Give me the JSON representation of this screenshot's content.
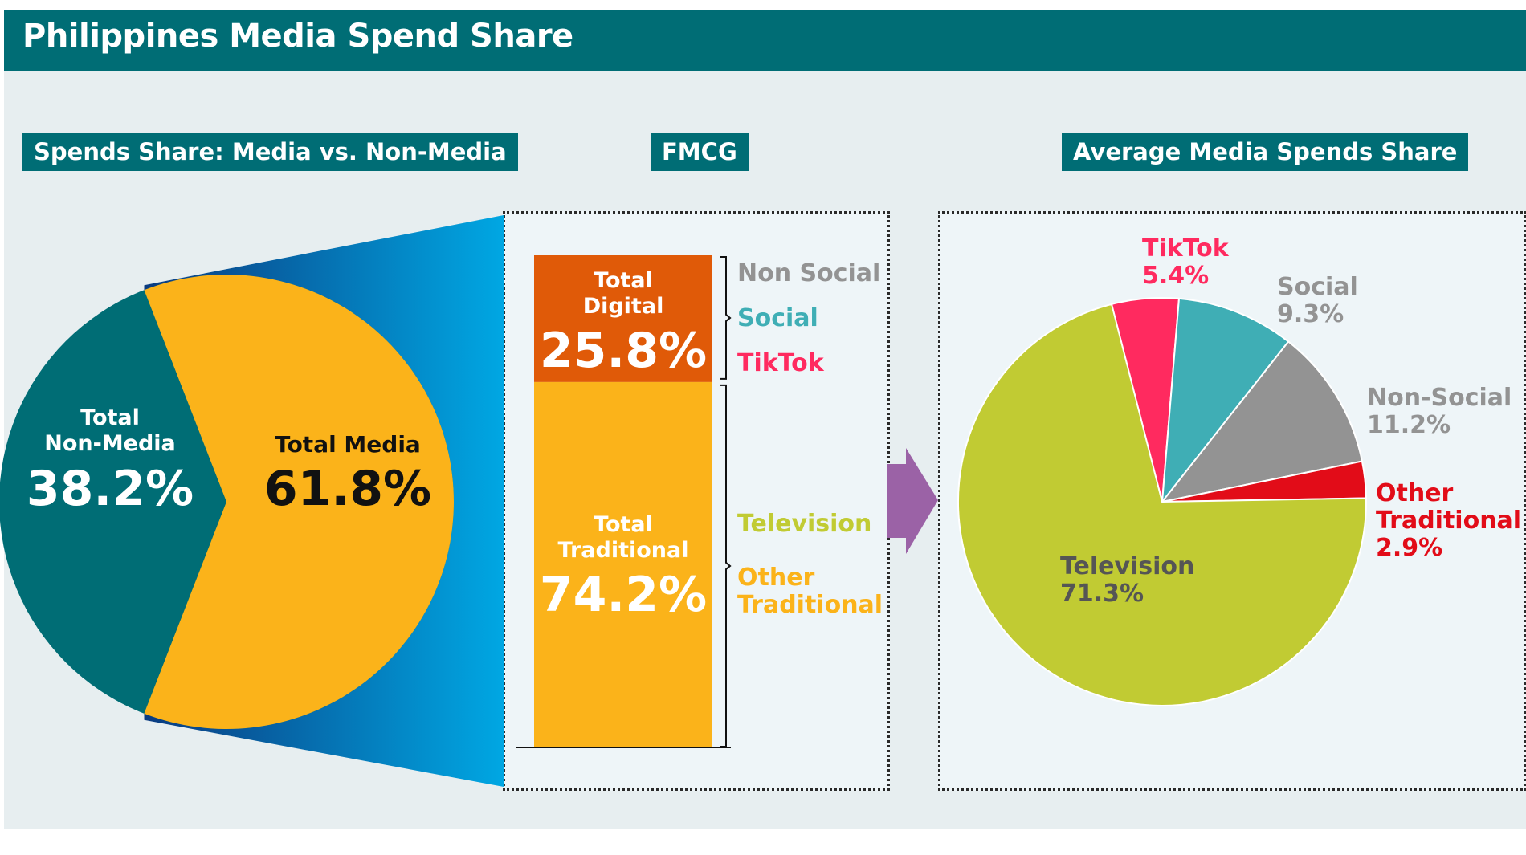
{
  "title": "Philippines Media Spend Share",
  "sections": {
    "left": "Spends Share: Media vs. Non-Media",
    "middle": "FMCG",
    "right": "Average Media Spends Share"
  },
  "colors": {
    "teal": "#006d75",
    "gold": "#fbb31a",
    "orange": "#e05a08",
    "grey": "#939393",
    "social_teal": "#3faeb5",
    "tiktok": "#ff2a5f",
    "television": "#c1cb33",
    "other_traditional": "#e20c18",
    "arrow": "#9b62a6",
    "funnel_dark": "#0b3b80",
    "funnel_light": "#00a7e3"
  },
  "chart_data": [
    {
      "type": "pie",
      "title": "Spends Share: Media vs. Non-Media",
      "slices": [
        {
          "label": "Total Media",
          "value": 61.8,
          "display": "61.8%",
          "color": "#fbb31a"
        },
        {
          "label": "Total Non-Media",
          "label_lines": [
            "Total",
            "Non-Media"
          ],
          "value": 38.2,
          "display": "38.2%",
          "color": "#006d75"
        }
      ]
    },
    {
      "type": "bar",
      "title": "FMCG",
      "stacked": true,
      "segments": [
        {
          "label": "Total Digital",
          "label_lines": [
            "Total",
            "Digital"
          ],
          "value": 25.8,
          "display": "25.8%",
          "color": "#e05a08",
          "components": [
            "Non Social",
            "Social",
            "TikTok"
          ]
        },
        {
          "label": "Total Traditional",
          "label_lines": [
            "Total",
            "Traditional"
          ],
          "value": 74.2,
          "display": "74.2%",
          "color": "#fbb31a",
          "components": [
            "Television",
            "Other Traditional"
          ]
        }
      ],
      "legend": [
        {
          "label": "Non Social",
          "color": "#939393"
        },
        {
          "label": "Social",
          "color": "#3faeb5"
        },
        {
          "label": "TikTok",
          "color": "#ff2a5f"
        },
        {
          "label": "Television",
          "color": "#c1cb33"
        },
        {
          "label": "Other Traditional",
          "label_lines": [
            "Other",
            "Traditional"
          ],
          "color": "#fbb31a"
        }
      ]
    },
    {
      "type": "pie",
      "title": "Average Media Spends Share",
      "slices": [
        {
          "label": "TikTok",
          "value": 5.4,
          "display": "5.4%",
          "color": "#ff2a5f"
        },
        {
          "label": "Social",
          "value": 9.3,
          "display": "9.3%",
          "color": "#3faeb5"
        },
        {
          "label": "Non-Social",
          "value": 11.2,
          "display": "11.2%",
          "color": "#939393"
        },
        {
          "label": "Other Traditional",
          "label_lines": [
            "Other",
            "Traditional"
          ],
          "value": 2.9,
          "display": "2.9%",
          "color": "#e20c18"
        },
        {
          "label": "Television",
          "value": 71.3,
          "display": "71.3%",
          "color": "#c1cb33"
        }
      ]
    }
  ]
}
